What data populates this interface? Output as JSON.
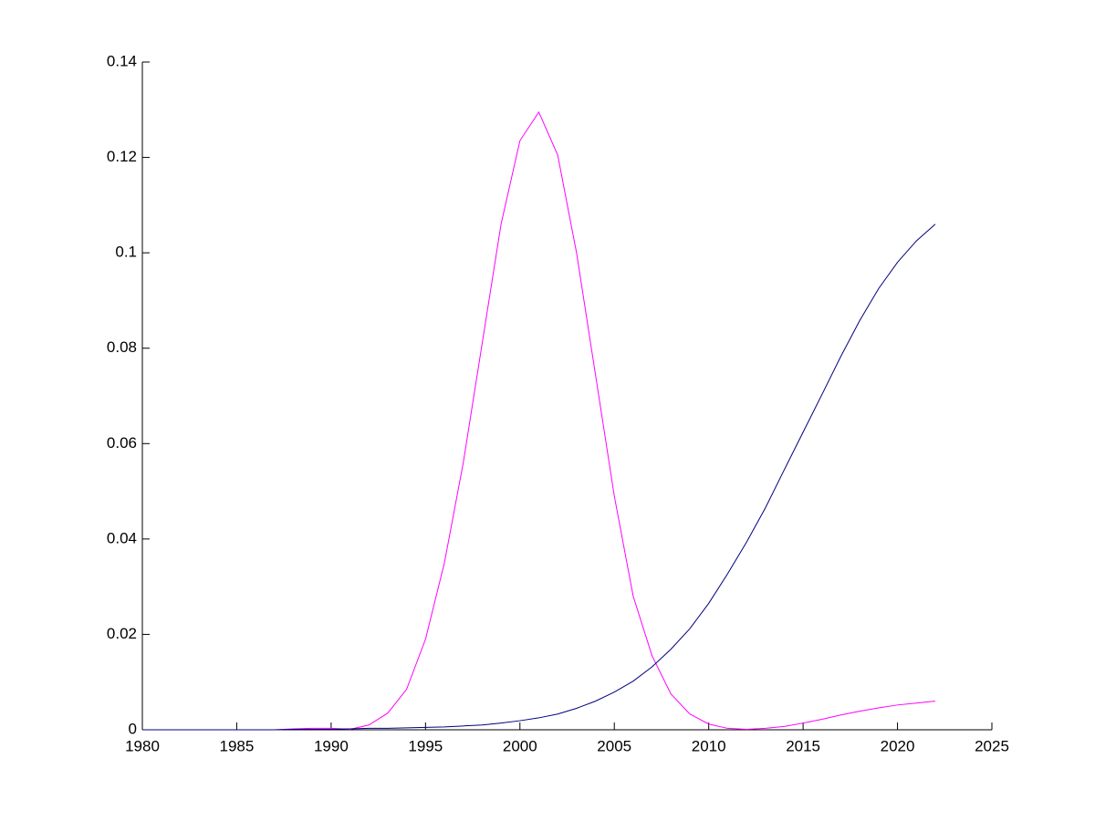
{
  "chart_data": {
    "type": "line",
    "x": [
      1980,
      1981,
      1982,
      1983,
      1984,
      1985,
      1986,
      1987,
      1988,
      1989,
      1990,
      1991,
      1992,
      1993,
      1994,
      1995,
      1996,
      1997,
      1998,
      1999,
      2000,
      2001,
      2002,
      2003,
      2004,
      2005,
      2006,
      2007,
      2008,
      2009,
      2010,
      2011,
      2012,
      2013,
      2014,
      2015,
      2016,
      2017,
      2018,
      2019,
      2020,
      2021,
      2022
    ],
    "series": [
      {
        "color": "#ff00ff",
        "values": [
          0,
          0,
          0,
          0,
          0,
          0,
          0,
          0,
          0.0002,
          0.0003,
          0.0003,
          0.0001,
          0.001,
          0.0035,
          0.0085,
          0.019,
          0.035,
          0.056,
          0.081,
          0.106,
          0.1235,
          0.1295,
          0.1205,
          0.1,
          0.0745,
          0.049,
          0.028,
          0.0155,
          0.0075,
          0.0033,
          0.0012,
          0.0003,
          0.0001,
          0.0003,
          0.0007,
          0.0014,
          0.0022,
          0.0031,
          0.0039,
          0.0046,
          0.0052,
          0.0056,
          0.006
        ]
      },
      {
        "color": "#000080",
        "values": [
          0,
          0,
          0,
          0,
          0,
          0,
          0,
          0,
          0.0001,
          0.0001,
          0.0001,
          0.0002,
          0.0003,
          0.0003,
          0.0004,
          0.0005,
          0.0006,
          0.0008,
          0.001,
          0.0014,
          0.0019,
          0.0025,
          0.0033,
          0.0045,
          0.006,
          0.0079,
          0.0102,
          0.0132,
          0.0169,
          0.0212,
          0.0265,
          0.0327,
          0.0393,
          0.0465,
          0.0545,
          0.0624,
          0.0703,
          0.0783,
          0.0858,
          0.0925,
          0.098,
          0.1025,
          0.106
        ]
      }
    ],
    "xlim": [
      1980,
      2025
    ],
    "xticks": [
      1980,
      1985,
      1990,
      1995,
      2000,
      2005,
      2010,
      2015,
      2020,
      2025
    ],
    "ylim": [
      0,
      0.14
    ],
    "yticks": [
      0,
      0.02,
      0.04,
      0.06,
      0.08,
      0.1,
      0.12,
      0.14
    ]
  }
}
